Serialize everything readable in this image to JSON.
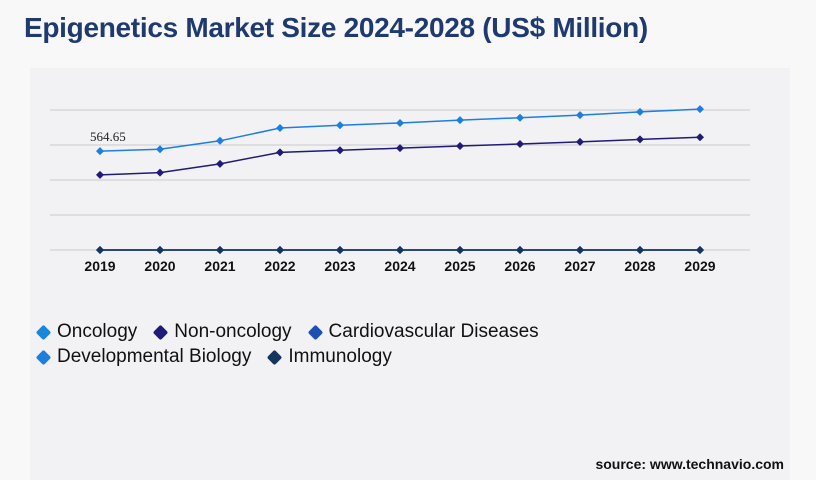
{
  "title": "Epigenetics Market Size 2024-2028 (US$ Million)",
  "source": "source: www.technavio.com",
  "chart_data": {
    "type": "line",
    "title": "Epigenetics Market Size 2024-2028 (US$ Million)",
    "xlabel": "",
    "ylabel": "",
    "x": [
      "2019",
      "2020",
      "2021",
      "2022",
      "2023",
      "2024",
      "2025",
      "2026",
      "2027",
      "2028",
      "2029"
    ],
    "ylim": [
      0,
      800
    ],
    "grid": true,
    "legend_position": "bottom-left",
    "series": [
      {
        "name": "Oncology",
        "color": "#1a86d8",
        "values": [
          0,
          0,
          0,
          0,
          0,
          0,
          0,
          0,
          0,
          0,
          0
        ]
      },
      {
        "name": "Non-oncology",
        "color": "#201a78",
        "values": [
          429,
          442,
          492,
          558,
          570,
          582,
          594,
          606,
          618,
          632,
          644
        ]
      },
      {
        "name": "Cardiovascular Diseases",
        "color": "#1e50b4",
        "values": [
          0,
          0,
          0,
          0,
          0,
          0,
          0,
          0,
          0,
          0,
          0
        ]
      },
      {
        "name": "Developmental Biology",
        "color": "#1c7ee0",
        "values": [
          564.65,
          576,
          624,
          697,
          713,
          726,
          742,
          756,
          771,
          789,
          805
        ]
      },
      {
        "name": "Immunology",
        "color": "#16355e",
        "values": [
          0,
          0,
          0,
          0,
          0,
          0,
          0,
          0,
          0,
          0,
          0
        ]
      }
    ],
    "data_labels": [
      {
        "series": "Developmental Biology",
        "index": 0,
        "text": "564.65"
      }
    ]
  }
}
